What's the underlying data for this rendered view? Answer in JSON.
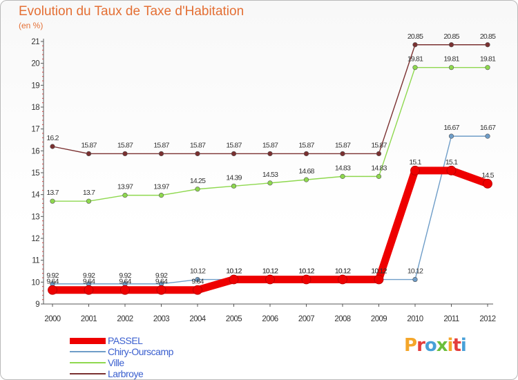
{
  "header": {
    "title": "Evolution du Taux de Taxe d'Habitation",
    "unit": "(en %)"
  },
  "logo": {
    "text": "Proxiti",
    "colors": [
      "#f4a62a",
      "#e33d3d",
      "#48a0d8",
      "#6abf3c",
      "#f4a62a",
      "#e33d3d",
      "#48a0d8"
    ]
  },
  "chart_data": {
    "type": "line",
    "x": [
      "2000",
      "2001",
      "2002",
      "2003",
      "2004",
      "2005",
      "2006",
      "2007",
      "2008",
      "2009",
      "2010",
      "2011",
      "2012"
    ],
    "ylim": [
      9,
      21
    ],
    "yticks": [
      9,
      10,
      11,
      12,
      13,
      14,
      15,
      16,
      17,
      18,
      19,
      20,
      21
    ],
    "grid": false,
    "legend_position": "bottom-left",
    "series": [
      {
        "name": "PASSEL",
        "color": "#ee0000",
        "values": [
          9.64,
          9.64,
          9.64,
          9.64,
          9.64,
          10.12,
          10.12,
          10.12,
          10.12,
          10.12,
          15.1,
          15.1,
          14.5
        ],
        "labels": [
          "9.64",
          "9.64",
          "9.64",
          "9.64",
          "9.64",
          "10.12",
          "10.12",
          "10.12",
          "10.12",
          "10.12",
          "15.1",
          "15.1",
          "14.5"
        ]
      },
      {
        "name": "Chiry-Ourscamp",
        "color": "#6e9dc8",
        "values": [
          9.92,
          9.92,
          9.92,
          9.92,
          10.12,
          10.12,
          10.12,
          10.12,
          10.12,
          10.12,
          10.12,
          16.67,
          16.67
        ],
        "labels": [
          "9.92",
          "9.92",
          "9.92",
          "9.92",
          "10.12",
          "10.12",
          "10.12",
          "10.12",
          "10.12",
          "10.12",
          "10.12",
          "16.67",
          "16.67"
        ]
      },
      {
        "name": "Ville",
        "color": "#8ed84e",
        "values": [
          13.7,
          13.7,
          13.97,
          13.97,
          14.25,
          14.39,
          14.53,
          14.68,
          14.83,
          14.83,
          19.81,
          19.81,
          19.81
        ],
        "labels": [
          "13.7",
          "13.7",
          "13.97",
          "13.97",
          "14.25",
          "14.39",
          "14.53",
          "14.68",
          "14.83",
          "14.83",
          "19.81",
          "19.81",
          "19.81"
        ]
      },
      {
        "name": "Larbroye",
        "color": "#7a3030",
        "values": [
          16.2,
          15.87,
          15.87,
          15.87,
          15.87,
          15.87,
          15.87,
          15.87,
          15.87,
          15.87,
          20.85,
          20.85,
          20.85
        ],
        "labels": [
          "16.2",
          "15.87",
          "15.87",
          "15.87",
          "15.87",
          "15.87",
          "15.87",
          "15.87",
          "15.87",
          "15.87",
          "20.85",
          "20.85",
          "20.85"
        ]
      }
    ]
  }
}
